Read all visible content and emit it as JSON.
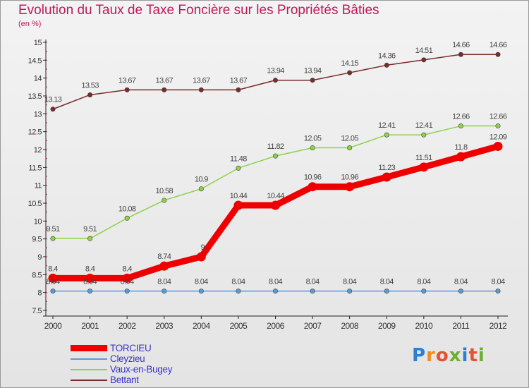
{
  "title": "Evolution du Taux de Taxe Foncière sur les Propriétés Bâties",
  "unit": "(en %)",
  "logo": {
    "letters": [
      "P",
      "r",
      "o",
      "x",
      "i",
      "t",
      "i"
    ],
    "colors": [
      "#2f7fd1",
      "#f28c1e",
      "#e2532e",
      "#6ab02f",
      "#2f7fd1",
      "#e2532e",
      "#6ab02f"
    ]
  },
  "chart_data": {
    "type": "line",
    "x": [
      "2000",
      "2001",
      "2002",
      "2003",
      "2004",
      "2005",
      "2006",
      "2007",
      "2008",
      "2009",
      "2010",
      "2011",
      "2012"
    ],
    "ylim": [
      7.5,
      15
    ],
    "yticks": [
      "7.5",
      "8",
      "8.5",
      "9",
      "9.5",
      "10",
      "10.5",
      "11",
      "11.5",
      "12",
      "12.5",
      "13",
      "13.5",
      "14",
      "14.5",
      "15"
    ],
    "grid": false,
    "legend_position": "bottom-left",
    "series": [
      {
        "name": "TORCIEU",
        "color": "#ee0000",
        "values": [
          8.4,
          8.4,
          8.4,
          8.74,
          9,
          10.44,
          10.44,
          10.96,
          10.96,
          11.23,
          11.51,
          11.8,
          12.09
        ],
        "labels": [
          "8.4",
          "8.4",
          "8.4",
          "8.74",
          "9",
          "10.44",
          "10.44",
          "10.96",
          "10.96",
          "11.23",
          "11.51",
          "11.8",
          "12.09"
        ]
      },
      {
        "name": "Cleyzieu",
        "color": "#5b9bd5",
        "values": [
          8.04,
          8.04,
          8.04,
          8.04,
          8.04,
          8.04,
          8.04,
          8.04,
          8.04,
          8.04,
          8.04,
          8.04,
          8.04
        ],
        "labels": [
          "8.04",
          "8.04",
          "8.04",
          "8.04",
          "8.04",
          "8.04",
          "8.04",
          "8.04",
          "8.04",
          "8.04",
          "8.04",
          "8.04",
          "8.04"
        ]
      },
      {
        "name": "Vaux-en-Bugey",
        "color": "#8ed14b",
        "values": [
          9.51,
          9.51,
          10.08,
          10.58,
          10.9,
          11.48,
          11.82,
          12.05,
          12.05,
          12.41,
          12.41,
          12.66,
          12.66
        ],
        "labels": [
          "9.51",
          "9.51",
          "10.08",
          "10.58",
          "10.9",
          "11.48",
          "11.82",
          "12.05",
          "12.05",
          "12.41",
          "12.41",
          "12.66",
          "12.66"
        ]
      },
      {
        "name": "Bettant",
        "color": "#7a2b2b",
        "values": [
          13.13,
          13.53,
          13.67,
          13.67,
          13.67,
          13.67,
          13.94,
          13.94,
          14.15,
          14.36,
          14.51,
          14.66,
          14.66
        ],
        "labels": [
          "13.13",
          "13.53",
          "13.67",
          "13.67",
          "13.67",
          "13.67",
          "13.94",
          "13.94",
          "14.15",
          "14.36",
          "14.51",
          "14.66",
          "14.66"
        ]
      }
    ]
  }
}
